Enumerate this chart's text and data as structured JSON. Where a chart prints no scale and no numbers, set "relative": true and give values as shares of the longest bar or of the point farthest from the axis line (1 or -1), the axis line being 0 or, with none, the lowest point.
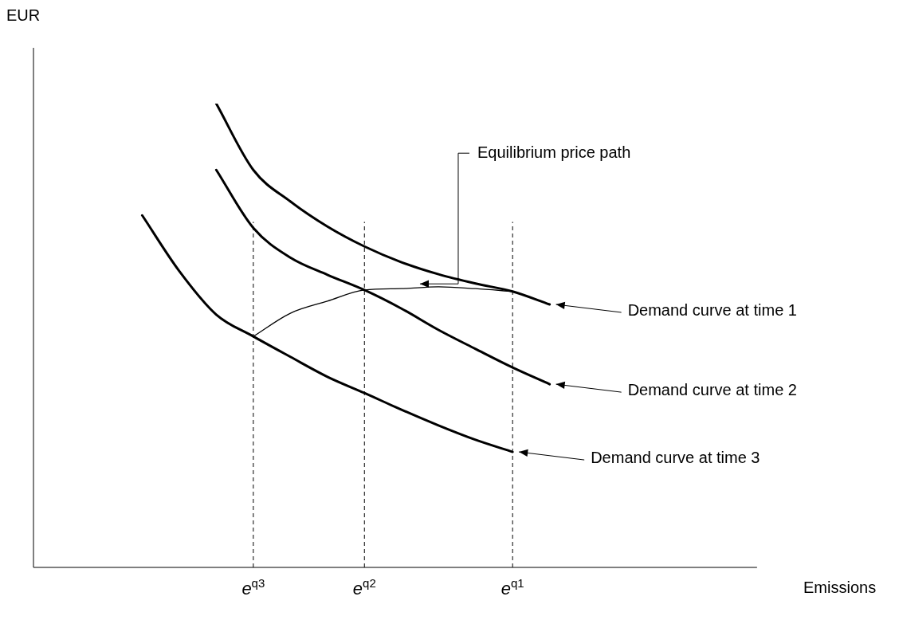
{
  "chart_data": {
    "type": "line",
    "relative": true,
    "xlabel": "Emissions",
    "ylabel": "EUR",
    "legend": "right",
    "marker": "none",
    "line_style": "solid",
    "categories": [
      null,
      null,
      null,
      null,
      null,
      null,
      "e$^{q3}$",
      null,
      null,
      "e$^{q2}$",
      null,
      null,
      null,
      "e$^{q1}$",
      null,
      null,
      null,
      null,
      null,
      null
    ],
    "series": [
      {
        "name": "Demand curve at time 1",
        "color": "#000000",
        "values": [
          null,
          null,
          null,
          null,
          null,
          1.0,
          0.857,
          0.789,
          0.735,
          0.692,
          0.658,
          0.632,
          0.612,
          0.595,
          0.567,
          null,
          null,
          null,
          null,
          null
        ]
      },
      {
        "name": "Demand curve at time 2",
        "color": "#000000",
        "values": [
          null,
          null,
          null,
          null,
          null,
          0.857,
          0.732,
          0.668,
          0.631,
          0.598,
          0.558,
          0.512,
          0.471,
          0.431,
          0.395,
          null,
          null,
          null,
          null,
          null
        ]
      },
      {
        "name": "Demand curve at time 3",
        "color": "#000000",
        "values": [
          null,
          null,
          null,
          0.759,
          0.639,
          0.545,
          0.498,
          0.454,
          0.411,
          0.376,
          0.34,
          0.306,
          0.275,
          0.249,
          null,
          null,
          null,
          null,
          null,
          null
        ]
      },
      {
        "color": "#000000",
        "values": [
          null,
          null,
          null,
          null,
          null,
          null,
          0.498,
          0.548,
          0.574,
          0.598,
          0.601,
          0.605,
          0.601,
          0.595,
          null,
          null,
          null,
          null,
          null,
          null
        ]
      }
    ],
    "ref_lines": [
      {
        "axis": "x",
        "value": "e$^{q3}$",
        "line_style": "dashed"
      },
      {
        "axis": "x",
        "value": "e$^{q2}$",
        "line_style": "dashed"
      },
      {
        "axis": "x",
        "value": "e$^{q1}$",
        "line_style": "dashed"
      }
    ],
    "annotations": [
      "Equilibrium price path"
    ]
  }
}
